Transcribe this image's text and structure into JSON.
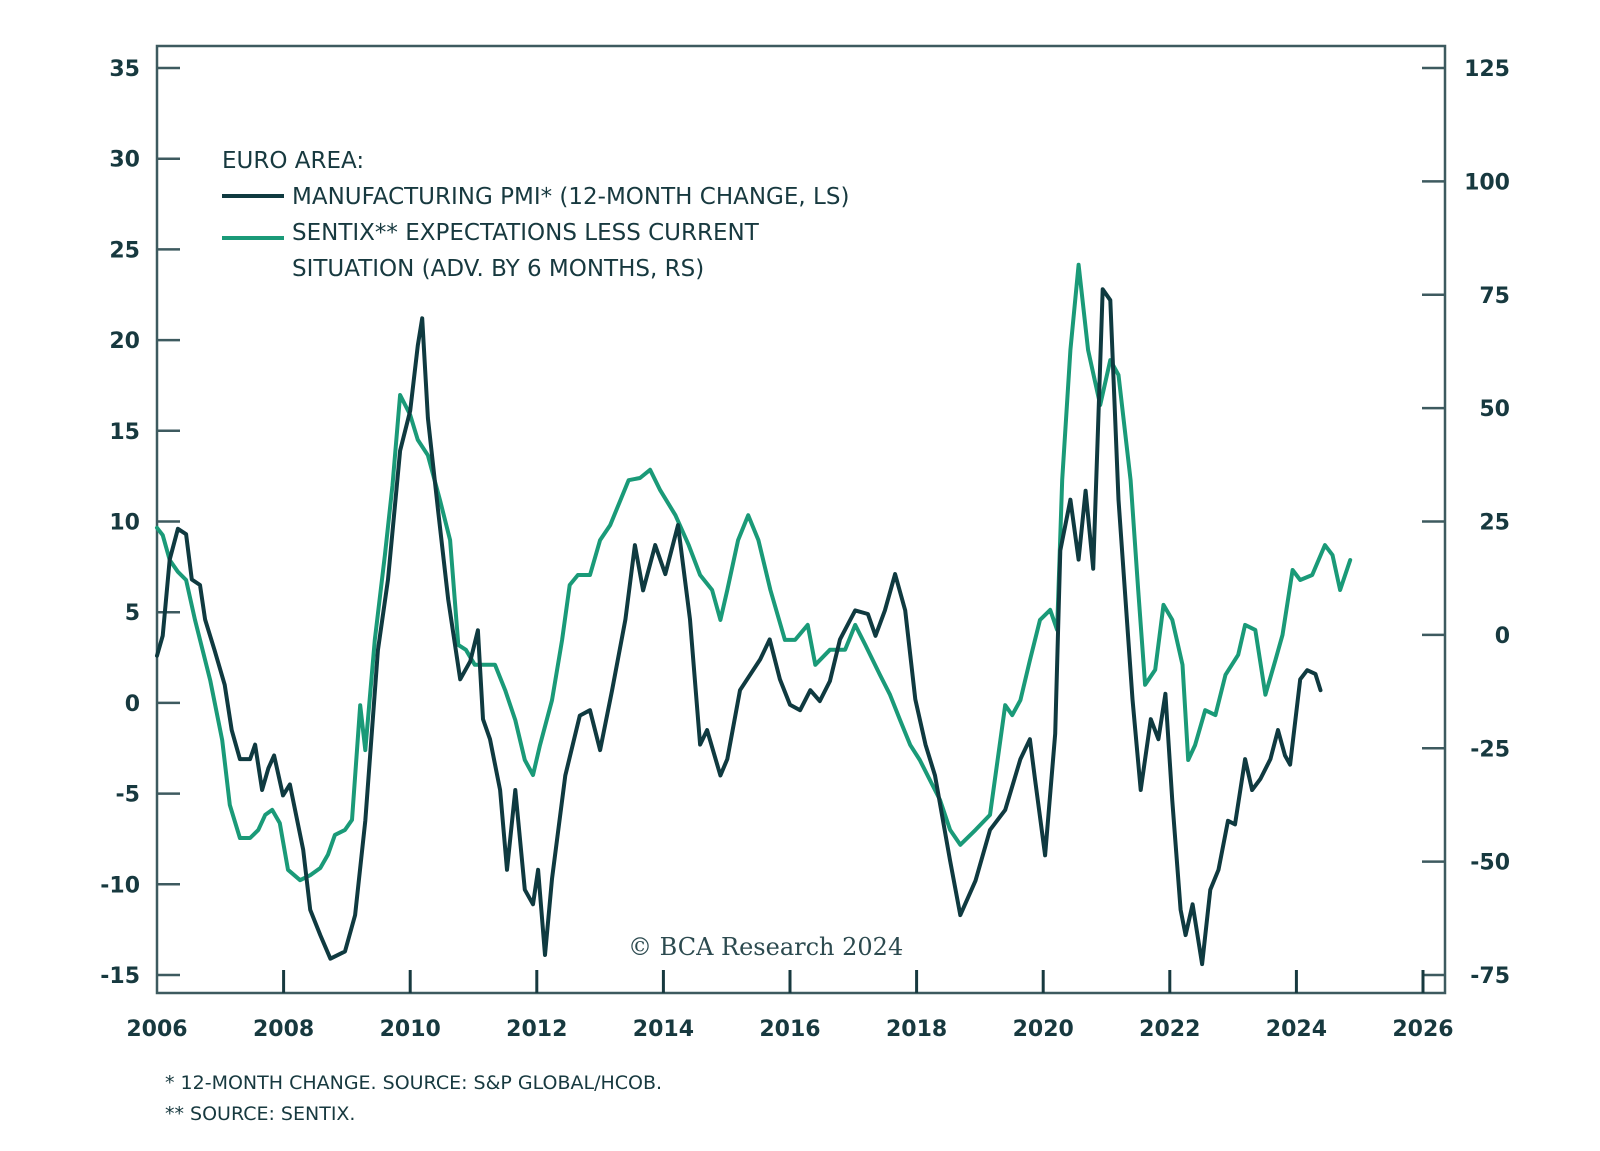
{
  "chart_data": {
    "type": "line",
    "title": "",
    "legend": {
      "heading": "EURO AREA:",
      "placement": "top-left",
      "entries": [
        {
          "label": "MANUFACTURING PMI* (12-MONTH CHANGE, LS)",
          "series": "pmi"
        },
        {
          "label_lines": [
            "SENTIX** EXPECTATIONS LESS CURRENT",
            "SITUATION (ADV. BY 6 MONTHS, RS)"
          ],
          "series": "sentix"
        }
      ]
    },
    "xlabel": "",
    "x_ticks": [
      "2006",
      "2008",
      "2010",
      "2012",
      "2014",
      "2016",
      "2018",
      "2020",
      "2022",
      "2024",
      "2026"
    ],
    "xlim": [
      2006,
      2026
    ],
    "left_axis": {
      "label": "",
      "ylim": [
        -15,
        35
      ],
      "ticks": [
        "35",
        "30",
        "25",
        "20",
        "15",
        "10",
        "5",
        "0",
        "-5",
        "-10",
        "-15"
      ]
    },
    "right_axis": {
      "label": "",
      "ylim": [
        -75,
        125
      ],
      "ticks": [
        "125",
        "100",
        "75",
        "50",
        "25",
        "0",
        "-25",
        "-50",
        "-75"
      ]
    },
    "grid": false,
    "series": [
      {
        "name": "MANUFACTURING PMI (12-MONTH CHANGE, LS)",
        "id": "pmi",
        "axis": "left",
        "color": "#0f3a40",
        "points": [
          [
            2006.0,
            2.6
          ],
          [
            2006.09,
            3.7
          ],
          [
            2006.2,
            7.9
          ],
          [
            2006.33,
            9.6
          ],
          [
            2006.46,
            9.3
          ],
          [
            2006.55,
            6.8
          ],
          [
            2006.68,
            6.5
          ],
          [
            2006.76,
            4.6
          ],
          [
            2006.91,
            2.9
          ],
          [
            2007.07,
            1.0
          ],
          [
            2007.18,
            -1.5
          ],
          [
            2007.31,
            -3.1
          ],
          [
            2007.47,
            -3.1
          ],
          [
            2007.55,
            -2.3
          ],
          [
            2007.66,
            -4.8
          ],
          [
            2007.76,
            -3.6
          ],
          [
            2007.85,
            -2.9
          ],
          [
            2007.99,
            -5.1
          ],
          [
            2008.1,
            -4.5
          ],
          [
            2008.31,
            -8.1
          ],
          [
            2008.42,
            -11.4
          ],
          [
            2008.58,
            -12.8
          ],
          [
            2008.74,
            -14.1
          ],
          [
            2008.97,
            -13.7
          ],
          [
            2009.13,
            -11.7
          ],
          [
            2009.29,
            -6.5
          ],
          [
            2009.49,
            2.9
          ],
          [
            2009.65,
            6.8
          ],
          [
            2009.84,
            13.9
          ],
          [
            2010.0,
            16.1
          ],
          [
            2010.12,
            19.7
          ],
          [
            2010.19,
            21.2
          ],
          [
            2010.28,
            15.7
          ],
          [
            2010.44,
            10.6
          ],
          [
            2010.6,
            5.7
          ],
          [
            2010.79,
            1.3
          ],
          [
            2010.95,
            2.3
          ],
          [
            2011.07,
            4.0
          ],
          [
            2011.15,
            -0.9
          ],
          [
            2011.26,
            -2.0
          ],
          [
            2011.42,
            -4.8
          ],
          [
            2011.53,
            -9.2
          ],
          [
            2011.66,
            -4.8
          ],
          [
            2011.81,
            -10.3
          ],
          [
            2011.94,
            -11.1
          ],
          [
            2012.02,
            -9.2
          ],
          [
            2012.13,
            -13.9
          ],
          [
            2012.24,
            -9.7
          ],
          [
            2012.45,
            -4.0
          ],
          [
            2012.68,
            -0.7
          ],
          [
            2012.84,
            -0.4
          ],
          [
            2013.0,
            -2.6
          ],
          [
            2013.19,
            0.7
          ],
          [
            2013.4,
            4.6
          ],
          [
            2013.55,
            8.7
          ],
          [
            2013.68,
            6.2
          ],
          [
            2013.87,
            8.7
          ],
          [
            2014.03,
            7.1
          ],
          [
            2014.23,
            9.8
          ],
          [
            2014.42,
            4.6
          ],
          [
            2014.58,
            -2.3
          ],
          [
            2014.69,
            -1.5
          ],
          [
            2014.9,
            -4.0
          ],
          [
            2015.01,
            -3.1
          ],
          [
            2015.21,
            0.7
          ],
          [
            2015.53,
            2.4
          ],
          [
            2015.68,
            3.5
          ],
          [
            2015.84,
            1.3
          ],
          [
            2016.0,
            -0.1
          ],
          [
            2016.16,
            -0.4
          ],
          [
            2016.32,
            0.7
          ],
          [
            2016.47,
            0.1
          ],
          [
            2016.63,
            1.2
          ],
          [
            2016.79,
            3.5
          ],
          [
            2017.03,
            5.1
          ],
          [
            2017.23,
            4.9
          ],
          [
            2017.35,
            3.7
          ],
          [
            2017.5,
            5.1
          ],
          [
            2017.66,
            7.1
          ],
          [
            2017.82,
            5.1
          ],
          [
            2017.98,
            0.2
          ],
          [
            2018.14,
            -2.3
          ],
          [
            2018.29,
            -4.0
          ],
          [
            2018.53,
            -8.7
          ],
          [
            2018.69,
            -11.7
          ],
          [
            2018.93,
            -9.8
          ],
          [
            2019.16,
            -7.0
          ],
          [
            2019.4,
            -5.9
          ],
          [
            2019.64,
            -3.1
          ],
          [
            2019.79,
            -2.0
          ],
          [
            2019.87,
            -4.2
          ],
          [
            2020.03,
            -8.4
          ],
          [
            2020.19,
            -1.7
          ],
          [
            2020.27,
            8.4
          ],
          [
            2020.43,
            11.2
          ],
          [
            2020.56,
            7.9
          ],
          [
            2020.67,
            11.7
          ],
          [
            2020.79,
            7.4
          ],
          [
            2020.87,
            15.6
          ],
          [
            2020.94,
            22.8
          ],
          [
            2021.06,
            22.2
          ],
          [
            2021.19,
            11.2
          ],
          [
            2021.3,
            5.7
          ],
          [
            2021.41,
            0.2
          ],
          [
            2021.54,
            -4.8
          ],
          [
            2021.7,
            -0.9
          ],
          [
            2021.82,
            -2.0
          ],
          [
            2021.93,
            0.5
          ],
          [
            2022.04,
            -5.4
          ],
          [
            2022.17,
            -11.4
          ],
          [
            2022.25,
            -12.8
          ],
          [
            2022.36,
            -11.1
          ],
          [
            2022.51,
            -14.4
          ],
          [
            2022.64,
            -10.3
          ],
          [
            2022.77,
            -9.2
          ],
          [
            2022.92,
            -6.5
          ],
          [
            2023.03,
            -6.7
          ],
          [
            2023.19,
            -3.1
          ],
          [
            2023.3,
            -4.8
          ],
          [
            2023.43,
            -4.2
          ],
          [
            2023.59,
            -3.1
          ],
          [
            2023.71,
            -1.5
          ],
          [
            2023.82,
            -2.9
          ],
          [
            2023.9,
            -3.4
          ],
          [
            2024.06,
            1.3
          ],
          [
            2024.17,
            1.8
          ],
          [
            2024.3,
            1.6
          ],
          [
            2024.38,
            0.7
          ]
        ]
      },
      {
        "name": "SENTIX EXPECTATIONS LESS CURRENT SITUATION (ADV. BY 6 MONTHS, RS)",
        "id": "sentix",
        "axis": "right",
        "color": "#1a9a78",
        "points": [
          [
            2006.0,
            23.6
          ],
          [
            2006.09,
            22.0
          ],
          [
            2006.2,
            16.5
          ],
          [
            2006.33,
            13.9
          ],
          [
            2006.46,
            12.1
          ],
          [
            2006.6,
            3.3
          ],
          [
            2006.84,
            -10.0
          ],
          [
            2007.03,
            -23.2
          ],
          [
            2007.15,
            -37.5
          ],
          [
            2007.31,
            -44.8
          ],
          [
            2007.47,
            -44.8
          ],
          [
            2007.6,
            -43.0
          ],
          [
            2007.71,
            -39.7
          ],
          [
            2007.82,
            -38.6
          ],
          [
            2007.94,
            -41.5
          ],
          [
            2008.07,
            -51.8
          ],
          [
            2008.26,
            -54.1
          ],
          [
            2008.42,
            -53.0
          ],
          [
            2008.58,
            -51.4
          ],
          [
            2008.7,
            -48.5
          ],
          [
            2008.81,
            -44.1
          ],
          [
            2008.97,
            -43.0
          ],
          [
            2009.08,
            -40.8
          ],
          [
            2009.21,
            -15.5
          ],
          [
            2009.29,
            -25.4
          ],
          [
            2009.44,
            -1.1
          ],
          [
            2009.6,
            17.6
          ],
          [
            2009.72,
            33.0
          ],
          [
            2009.84,
            52.9
          ],
          [
            2010.0,
            48.5
          ],
          [
            2010.12,
            43.0
          ],
          [
            2010.28,
            39.6
          ],
          [
            2010.47,
            29.7
          ],
          [
            2010.63,
            20.9
          ],
          [
            2010.76,
            -2.2
          ],
          [
            2010.88,
            -3.3
          ],
          [
            2011.02,
            -6.6
          ],
          [
            2011.18,
            -6.6
          ],
          [
            2011.34,
            -6.6
          ],
          [
            2011.5,
            -12.2
          ],
          [
            2011.66,
            -18.8
          ],
          [
            2011.81,
            -27.6
          ],
          [
            2011.94,
            -30.9
          ],
          [
            2012.05,
            -24.3
          ],
          [
            2012.24,
            -14.4
          ],
          [
            2012.4,
            -1.1
          ],
          [
            2012.52,
            11.0
          ],
          [
            2012.65,
            13.2
          ],
          [
            2012.84,
            13.2
          ],
          [
            2013.0,
            20.9
          ],
          [
            2013.16,
            24.2
          ],
          [
            2013.32,
            29.7
          ],
          [
            2013.45,
            34.1
          ],
          [
            2013.63,
            34.6
          ],
          [
            2013.79,
            36.4
          ],
          [
            2013.95,
            31.9
          ],
          [
            2014.19,
            26.4
          ],
          [
            2014.4,
            19.8
          ],
          [
            2014.58,
            13.2
          ],
          [
            2014.77,
            9.9
          ],
          [
            2014.9,
            3.3
          ],
          [
            2015.01,
            9.9
          ],
          [
            2015.18,
            20.9
          ],
          [
            2015.34,
            26.4
          ],
          [
            2015.5,
            20.9
          ],
          [
            2015.69,
            9.9
          ],
          [
            2015.92,
            -1.1
          ],
          [
            2016.08,
            -1.1
          ],
          [
            2016.28,
            2.2
          ],
          [
            2016.4,
            -6.6
          ],
          [
            2016.63,
            -3.3
          ],
          [
            2016.87,
            -3.3
          ],
          [
            2017.03,
            2.2
          ],
          [
            2017.19,
            -2.2
          ],
          [
            2017.42,
            -8.8
          ],
          [
            2017.58,
            -13.2
          ],
          [
            2017.74,
            -18.8
          ],
          [
            2017.9,
            -24.3
          ],
          [
            2018.05,
            -27.6
          ],
          [
            2018.21,
            -32.0
          ],
          [
            2018.37,
            -36.4
          ],
          [
            2018.53,
            -43.0
          ],
          [
            2018.69,
            -46.3
          ],
          [
            2018.93,
            -43.0
          ],
          [
            2019.16,
            -39.7
          ],
          [
            2019.4,
            -15.5
          ],
          [
            2019.51,
            -17.7
          ],
          [
            2019.64,
            -14.4
          ],
          [
            2019.79,
            -5.6
          ],
          [
            2019.95,
            3.3
          ],
          [
            2020.11,
            5.5
          ],
          [
            2020.22,
            1.1
          ],
          [
            2020.3,
            34.2
          ],
          [
            2020.43,
            62.8
          ],
          [
            2020.56,
            81.6
          ],
          [
            2020.71,
            62.8
          ],
          [
            2020.9,
            50.7
          ],
          [
            2021.06,
            60.6
          ],
          [
            2021.19,
            57.3
          ],
          [
            2021.38,
            34.1
          ],
          [
            2021.5,
            9.9
          ],
          [
            2021.61,
            -11.0
          ],
          [
            2021.77,
            -7.7
          ],
          [
            2021.9,
            6.6
          ],
          [
            2022.04,
            3.3
          ],
          [
            2022.2,
            -6.6
          ],
          [
            2022.29,
            -27.6
          ],
          [
            2022.4,
            -24.3
          ],
          [
            2022.56,
            -16.6
          ],
          [
            2022.72,
            -17.7
          ],
          [
            2022.88,
            -8.8
          ],
          [
            2023.08,
            -4.4
          ],
          [
            2023.19,
            2.2
          ],
          [
            2023.35,
            1.1
          ],
          [
            2023.51,
            -13.2
          ],
          [
            2023.67,
            -5.5
          ],
          [
            2023.78,
            0.0
          ],
          [
            2023.94,
            14.3
          ],
          [
            2024.06,
            12.1
          ],
          [
            2024.25,
            13.2
          ],
          [
            2024.45,
            19.8
          ],
          [
            2024.57,
            17.6
          ],
          [
            2024.69,
            9.9
          ],
          [
            2024.85,
            16.5
          ]
        ]
      }
    ],
    "watermark": "© BCA Research 2024",
    "footnotes": [
      "* 12-MONTH CHANGE. SOURCE: S&P GLOBAL/HCOB.",
      "** SOURCE: SENTIX."
    ]
  }
}
